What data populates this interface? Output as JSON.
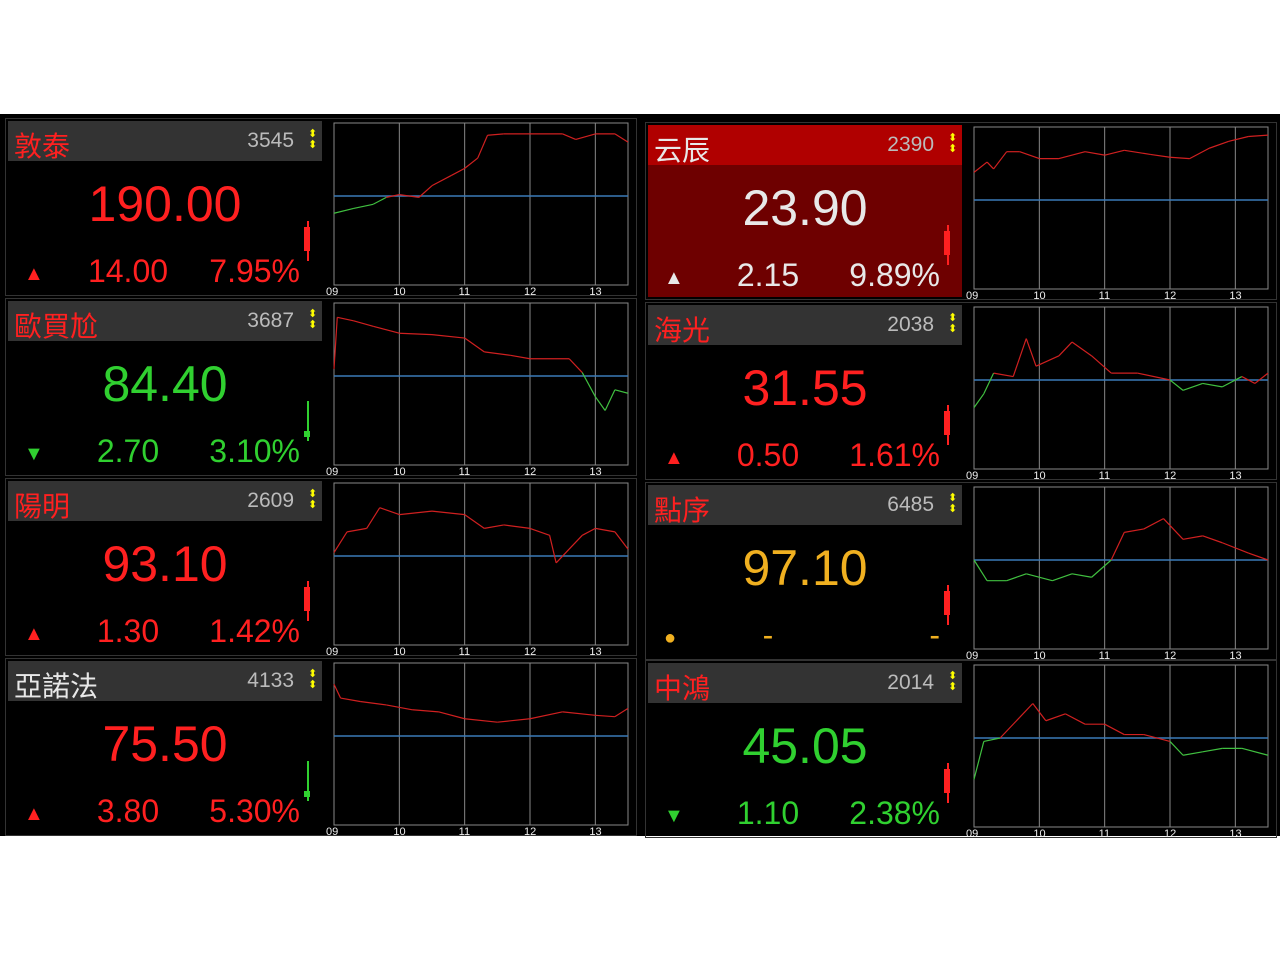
{
  "colors": {
    "up": "#ff2020",
    "down": "#30d030",
    "flat": "#f0b020",
    "white": "#e8e8e8",
    "ref_line": "#3a7ab8",
    "grid": "#888"
  },
  "axis_labels": [
    "09",
    "10",
    "11",
    "12",
    "13"
  ],
  "cards": [
    {
      "name": "敦泰",
      "code": "3545",
      "price": "190.00",
      "change": "14.00",
      "pct": "7.95%",
      "dir": "up",
      "name_color": "up",
      "price_color": "up",
      "candle": "up",
      "series": [
        [
          9,
          -0.25
        ],
        [
          9.3,
          -0.18
        ],
        [
          9.6,
          -0.12
        ],
        [
          9.8,
          -0.02
        ],
        [
          10,
          0.02
        ],
        [
          10.3,
          -0.02
        ],
        [
          10.5,
          0.15
        ],
        [
          10.8,
          0.3
        ],
        [
          11,
          0.4
        ],
        [
          11.2,
          0.55
        ],
        [
          11.35,
          0.88
        ],
        [
          11.6,
          0.9
        ],
        [
          12,
          0.9
        ],
        [
          12.5,
          0.9
        ],
        [
          12.7,
          0.82
        ],
        [
          13,
          0.9
        ],
        [
          13.3,
          0.9
        ],
        [
          13.5,
          0.78
        ]
      ]
    },
    {
      "name": "云辰",
      "code": "2390",
      "price": "23.90",
      "change": "2.15",
      "pct": "9.89%",
      "dir": "up",
      "name_color": "white",
      "price_color": "white",
      "candle": "up",
      "highlight": true,
      "series": [
        [
          9,
          0.4
        ],
        [
          9.2,
          0.55
        ],
        [
          9.3,
          0.45
        ],
        [
          9.5,
          0.7
        ],
        [
          9.7,
          0.7
        ],
        [
          10,
          0.6
        ],
        [
          10.3,
          0.6
        ],
        [
          10.7,
          0.7
        ],
        [
          11,
          0.65
        ],
        [
          11.3,
          0.72
        ],
        [
          11.7,
          0.66
        ],
        [
          12,
          0.62
        ],
        [
          12.3,
          0.6
        ],
        [
          12.6,
          0.75
        ],
        [
          12.9,
          0.85
        ],
        [
          13.2,
          0.92
        ],
        [
          13.5,
          0.94
        ]
      ]
    },
    {
      "name": "歐買尬",
      "code": "3687",
      "price": "84.40",
      "change": "2.70",
      "pct": "3.10%",
      "dir": "down",
      "name_color": "up",
      "price_color": "down",
      "candle": "down",
      "series": [
        [
          9,
          0.1
        ],
        [
          9.05,
          0.85
        ],
        [
          9.3,
          0.8
        ],
        [
          9.6,
          0.72
        ],
        [
          10,
          0.62
        ],
        [
          10.5,
          0.6
        ],
        [
          11,
          0.55
        ],
        [
          11.3,
          0.35
        ],
        [
          11.7,
          0.3
        ],
        [
          12,
          0.25
        ],
        [
          12.6,
          0.25
        ],
        [
          12.8,
          0.05
        ],
        [
          13,
          -0.3
        ],
        [
          13.15,
          -0.5
        ],
        [
          13.3,
          -0.2
        ],
        [
          13.5,
          -0.25
        ]
      ]
    },
    {
      "name": "海光",
      "code": "2038",
      "price": "31.55",
      "change": "0.50",
      "pct": "1.61%",
      "dir": "up",
      "name_color": "up",
      "price_color": "up",
      "candle": "up",
      "series": [
        [
          9,
          -0.4
        ],
        [
          9.15,
          -0.2
        ],
        [
          9.3,
          0.1
        ],
        [
          9.6,
          0.05
        ],
        [
          9.8,
          0.6
        ],
        [
          9.95,
          0.2
        ],
        [
          10.3,
          0.35
        ],
        [
          10.5,
          0.55
        ],
        [
          10.8,
          0.35
        ],
        [
          11.1,
          0.1
        ],
        [
          11.5,
          0.1
        ],
        [
          12,
          0.0
        ],
        [
          12.2,
          -0.15
        ],
        [
          12.5,
          -0.05
        ],
        [
          12.8,
          -0.1
        ],
        [
          13.1,
          0.05
        ],
        [
          13.3,
          -0.05
        ],
        [
          13.5,
          0.1
        ]
      ]
    },
    {
      "name": "陽明",
      "code": "2609",
      "price": "93.10",
      "change": "1.30",
      "pct": "1.42%",
      "dir": "up",
      "name_color": "up",
      "price_color": "up",
      "candle": "up",
      "series": [
        [
          9,
          0.05
        ],
        [
          9.2,
          0.35
        ],
        [
          9.5,
          0.4
        ],
        [
          9.7,
          0.7
        ],
        [
          10,
          0.6
        ],
        [
          10.5,
          0.65
        ],
        [
          11,
          0.6
        ],
        [
          11.3,
          0.4
        ],
        [
          11.6,
          0.45
        ],
        [
          12,
          0.4
        ],
        [
          12.3,
          0.3
        ],
        [
          12.4,
          -0.1
        ],
        [
          12.6,
          0.1
        ],
        [
          12.8,
          0.3
        ],
        [
          13,
          0.4
        ],
        [
          13.3,
          0.35
        ],
        [
          13.5,
          0.1
        ]
      ]
    },
    {
      "name": "點序",
      "code": "6485",
      "price": "97.10",
      "change": "-",
      "pct": "-",
      "dir": "flat",
      "name_color": "up",
      "price_color": "flat",
      "candle": "up",
      "series": [
        [
          9,
          0
        ],
        [
          9.2,
          -0.3
        ],
        [
          9.5,
          -0.3
        ],
        [
          9.8,
          -0.2
        ],
        [
          10.2,
          -0.3
        ],
        [
          10.5,
          -0.2
        ],
        [
          10.8,
          -0.25
        ],
        [
          11.1,
          0
        ],
        [
          11.3,
          0.4
        ],
        [
          11.6,
          0.45
        ],
        [
          11.9,
          0.6
        ],
        [
          12.2,
          0.3
        ],
        [
          12.5,
          0.35
        ],
        [
          12.8,
          0.25
        ],
        [
          13.2,
          0.1
        ],
        [
          13.5,
          0
        ]
      ]
    },
    {
      "name": "亞諾法",
      "code": "4133",
      "price": "75.50",
      "change": "3.80",
      "pct": "5.30%",
      "dir": "up",
      "name_color": "white",
      "price_color": "up",
      "candle": "down",
      "series": [
        [
          9,
          0.75
        ],
        [
          9.1,
          0.55
        ],
        [
          9.4,
          0.5
        ],
        [
          9.8,
          0.45
        ],
        [
          10.2,
          0.38
        ],
        [
          10.6,
          0.35
        ],
        [
          11,
          0.25
        ],
        [
          11.5,
          0.2
        ],
        [
          12,
          0.25
        ],
        [
          12.5,
          0.35
        ],
        [
          13,
          0.3
        ],
        [
          13.3,
          0.28
        ],
        [
          13.5,
          0.4
        ]
      ]
    },
    {
      "name": "中鴻",
      "code": "2014",
      "price": "45.05",
      "change": "1.10",
      "pct": "2.38%",
      "dir": "down",
      "name_color": "up",
      "price_color": "down",
      "candle": "up",
      "series": [
        [
          9,
          -0.6
        ],
        [
          9.15,
          -0.05
        ],
        [
          9.4,
          0.0
        ],
        [
          9.7,
          0.3
        ],
        [
          9.9,
          0.5
        ],
        [
          10.1,
          0.25
        ],
        [
          10.4,
          0.35
        ],
        [
          10.7,
          0.2
        ],
        [
          11,
          0.2
        ],
        [
          11.3,
          0.05
        ],
        [
          11.6,
          0.05
        ],
        [
          12,
          -0.05
        ],
        [
          12.2,
          -0.25
        ],
        [
          12.5,
          -0.2
        ],
        [
          12.8,
          -0.15
        ],
        [
          13.1,
          -0.15
        ],
        [
          13.5,
          -0.25
        ]
      ]
    }
  ]
}
